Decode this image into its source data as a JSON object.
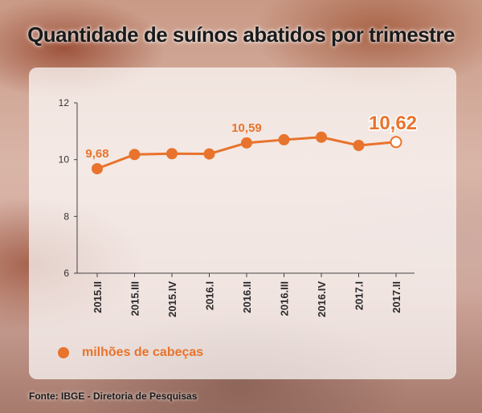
{
  "header": {
    "title": "Quantidade de suínos abatidos por trimestre"
  },
  "footer": {
    "source": "Fonte: IBGE - Diretoria de Pesquisas"
  },
  "colors": {
    "accent": "#e8732c",
    "axis": "#444444"
  },
  "chart_data": {
    "type": "line",
    "title": "Quantidade de suínos abatidos por trimestre",
    "categories": [
      "2015.II",
      "2015.III",
      "2015.IV",
      "2016.I",
      "2016.II",
      "2016.III",
      "2016.IV",
      "2017.I",
      "2017.II"
    ],
    "series": [
      {
        "name": "milhões de cabeças",
        "values": [
          9.68,
          10.18,
          10.21,
          10.2,
          10.59,
          10.7,
          10.79,
          10.5,
          10.62
        ]
      }
    ],
    "data_labels": [
      {
        "index": 0,
        "text": "9,68"
      },
      {
        "index": 4,
        "text": "10,59"
      },
      {
        "index": 8,
        "text": "10,62"
      }
    ],
    "yticks": [
      "6",
      "8",
      "10",
      "12"
    ],
    "ylim": [
      6,
      12
    ],
    "grid": false,
    "legend": "bottom-left"
  }
}
